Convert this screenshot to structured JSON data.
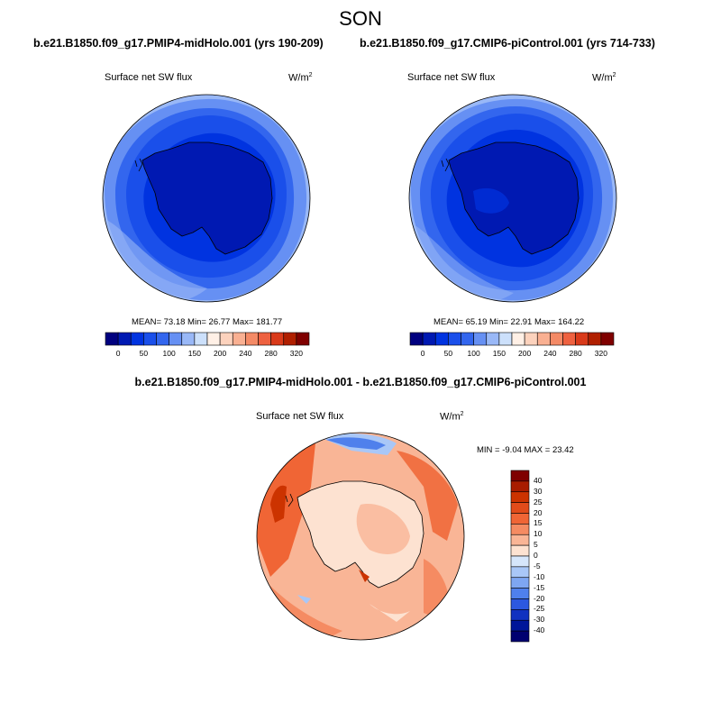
{
  "title": "SON",
  "panels": [
    {
      "case": "b.e21.B1850.f09_g17.PMIP4-midHolo.001 (yrs 190-209)",
      "variable": "Surface net SW flux",
      "units_base": "W/m",
      "units_exp": "2",
      "stats": "MEAN=  73.18  Min=  26.77  Max= 181.77",
      "cbar_ticks": [
        "0",
        "50",
        "100",
        "150",
        "200",
        "240",
        "280",
        "320"
      ]
    },
    {
      "case": "b.e21.B1850.f09_g17.CMIP6-piControl.001 (yrs 714-733)",
      "variable": "Surface net SW flux",
      "units_base": "W/m",
      "units_exp": "2",
      "stats": "MEAN=  65.19  Min=  22.91  Max= 164.22",
      "cbar_ticks": [
        "0",
        "50",
        "100",
        "150",
        "200",
        "240",
        "280",
        "320"
      ]
    }
  ],
  "diff": {
    "title": "b.e21.B1850.f09_g17.PMIP4-midHolo.001 - b.e21.B1850.f09_g17.CMIP6-piControl.001",
    "variable": "Surface net SW flux",
    "units_base": "W/m",
    "units_exp": "2",
    "stats": "MIN =  -9.04 MAX =  23.42",
    "cbar_ticks": [
      "40",
      "30",
      "25",
      "20",
      "15",
      "10",
      "5",
      "0",
      "-5",
      "-10",
      "-15",
      "-20",
      "-25",
      "-30",
      "-40"
    ]
  },
  "colors": {
    "abs_scale": [
      "#00007f",
      "#0019b2",
      "#0033e0",
      "#1a4fea",
      "#3366ee",
      "#6690f3",
      "#99b8f7",
      "#cce0fb",
      "#fff0e6",
      "#fcd2bd",
      "#f9b092",
      "#f48a66",
      "#ee6140",
      "#d93a1a",
      "#b01f00",
      "#7f0000"
    ],
    "diff_scale": [
      "#7f0000",
      "#a81c00",
      "#cc3300",
      "#e14b1a",
      "#f06535",
      "#f58b62",
      "#f9b596",
      "#fde2d1",
      "#d6e6fb",
      "#a9c7f7",
      "#7ea6f2",
      "#4f80ec",
      "#2c58e0",
      "#1032c0",
      "#001699",
      "#000070"
    ]
  }
}
